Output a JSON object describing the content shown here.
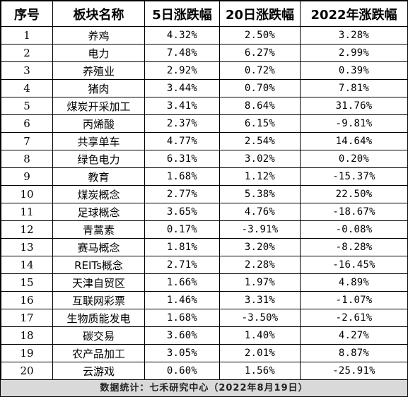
{
  "table": {
    "headers": [
      "序号",
      "板块名称",
      "5日涨跌幅",
      "20日涨跌幅",
      "2022年涨跌幅"
    ],
    "rows": [
      [
        "1",
        "养鸡",
        "4.32%",
        "2.50%",
        "3.28%"
      ],
      [
        "2",
        "电力",
        "7.48%",
        "6.27%",
        "2.99%"
      ],
      [
        "3",
        "养殖业",
        "2.92%",
        "0.72%",
        "0.39%"
      ],
      [
        "4",
        "猪肉",
        "3.44%",
        "0.70%",
        "7.81%"
      ],
      [
        "5",
        "煤炭开采加工",
        "3.41%",
        "8.64%",
        "31.76%"
      ],
      [
        "6",
        "丙烯酸",
        "2.37%",
        "6.15%",
        "-9.81%"
      ],
      [
        "7",
        "共享单车",
        "4.77%",
        "2.54%",
        "14.64%"
      ],
      [
        "8",
        "绿色电力",
        "6.31%",
        "3.02%",
        "0.20%"
      ],
      [
        "9",
        "教育",
        "1.68%",
        "1.12%",
        "-15.37%"
      ],
      [
        "10",
        "煤炭概念",
        "2.77%",
        "5.38%",
        "22.50%"
      ],
      [
        "11",
        "足球概念",
        "3.65%",
        "4.76%",
        "-18.67%"
      ],
      [
        "12",
        "青蒿素",
        "0.17%",
        "-3.91%",
        "-0.08%"
      ],
      [
        "13",
        "赛马概念",
        "1.81%",
        "3.20%",
        "-8.28%"
      ],
      [
        "14",
        "REITs概念",
        "2.71%",
        "2.28%",
        "-16.45%"
      ],
      [
        "15",
        "天津自贸区",
        "1.66%",
        "1.97%",
        "4.89%"
      ],
      [
        "16",
        "互联网彩票",
        "1.46%",
        "3.31%",
        "-1.07%"
      ],
      [
        "17",
        "生物质能发电",
        "1.68%",
        "-3.50%",
        "-2.61%"
      ],
      [
        "18",
        "碳交易",
        "3.60%",
        "1.40%",
        "4.27%"
      ],
      [
        "19",
        "农产品加工",
        "3.05%",
        "2.01%",
        "8.87%"
      ],
      [
        "20",
        "云游戏",
        "0.60%",
        "1.56%",
        "-25.91%"
      ]
    ]
  },
  "footer": {
    "text": "数据统计：七禾研究中心（2022年8月19日）"
  }
}
